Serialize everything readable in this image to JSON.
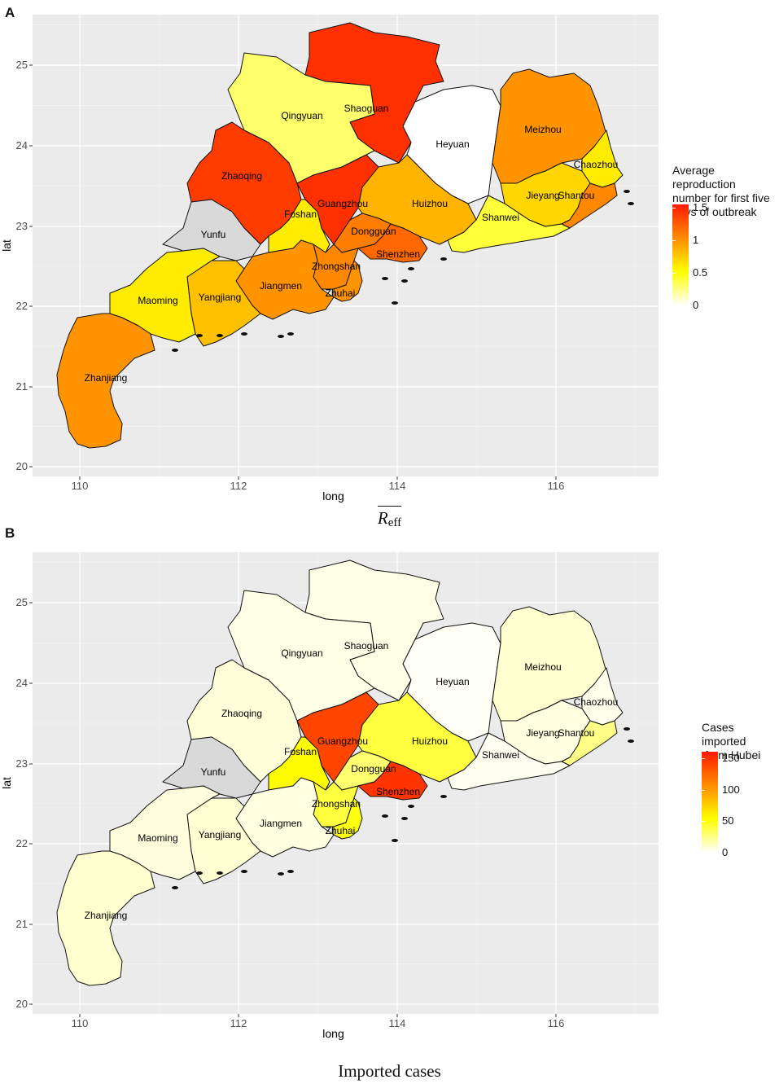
{
  "panels": [
    {
      "letter": "A",
      "caption_main": "R",
      "caption_sub": "eff",
      "legend": {
        "title_lines": [
          "Average reproduction",
          "number for first five",
          "days of outbreak"
        ],
        "ticks": [
          "1.5",
          "1",
          "0.5",
          "0"
        ],
        "tick_values": [
          1.5,
          1,
          0.5,
          0
        ],
        "range": [
          0,
          1.55
        ],
        "colors": [
          "#ffffff",
          "#ffff00",
          "#ff8c00",
          "#ff1a00"
        ]
      }
    },
    {
      "letter": "B",
      "caption": "Imported cases",
      "legend": {
        "title_lines": [
          "Cases imported",
          " from Hubei"
        ],
        "ticks": [
          "150",
          "100",
          "50",
          "0"
        ],
        "tick_values": [
          150,
          100,
          50,
          0
        ],
        "range": [
          0,
          160
        ],
        "colors": [
          "#ffffff",
          "#ffff00",
          "#ff8c00",
          "#ff1a00"
        ]
      }
    }
  ],
  "axes": {
    "xlabel": "long",
    "ylabel": "lat",
    "x_ticks": [
      "110",
      "112",
      "114",
      "116"
    ],
    "y_ticks": [
      "20",
      "21",
      "22",
      "23",
      "24",
      "25"
    ],
    "x_range": [
      109.6,
      117.4
    ],
    "y_range": [
      19.95,
      25.55
    ]
  },
  "chart_data": [
    {
      "type": "choropleth",
      "variable": "Average reproduction number for first five days of outbreak",
      "regions": [
        {
          "name": "Shaoguan",
          "value": 1.45
        },
        {
          "name": "Qingyuan",
          "value": 0.3
        },
        {
          "name": "Heyuan",
          "value": 0.0
        },
        {
          "name": "Meizhou",
          "value": 1.0
        },
        {
          "name": "Chaozhou",
          "value": 0.6
        },
        {
          "name": "Zhaoqing",
          "value": 1.4
        },
        {
          "name": "Guangzhou",
          "value": 1.45
        },
        {
          "name": "Huizhou",
          "value": 0.85
        },
        {
          "name": "Jieyang",
          "value": 0.7
        },
        {
          "name": "Shantou",
          "value": 1.05
        },
        {
          "name": "Foshan",
          "value": 0.6
        },
        {
          "name": "Yunfu",
          "value": null
        },
        {
          "name": "Dongguan",
          "value": 1.1
        },
        {
          "name": "Shanwei",
          "value": 0.4
        },
        {
          "name": "Shenzhen",
          "value": 1.2
        },
        {
          "name": "Zhongshan",
          "value": 1.05
        },
        {
          "name": "Zhuhai",
          "value": 1.0
        },
        {
          "name": "Jiangmen",
          "value": 1.0
        },
        {
          "name": "Yangjiang",
          "value": 0.8
        },
        {
          "name": "Maoming",
          "value": 0.6
        },
        {
          "name": "Zhanjiang",
          "value": 1.0
        }
      ]
    },
    {
      "type": "choropleth",
      "variable": "Cases imported from Hubei",
      "regions": [
        {
          "name": "Shaoguan",
          "value": 5
        },
        {
          "name": "Qingyuan",
          "value": 5
        },
        {
          "name": "Heyuan",
          "value": 2
        },
        {
          "name": "Meizhou",
          "value": 10
        },
        {
          "name": "Chaozhou",
          "value": 4
        },
        {
          "name": "Zhaoqing",
          "value": 8
        },
        {
          "name": "Guangzhou",
          "value": 140
        },
        {
          "name": "Huizhou",
          "value": 40
        },
        {
          "name": "Jieyang",
          "value": 6
        },
        {
          "name": "Shantou",
          "value": 25
        },
        {
          "name": "Foshan",
          "value": 55
        },
        {
          "name": "Yunfu",
          "value": null
        },
        {
          "name": "Dongguan",
          "value": 30
        },
        {
          "name": "Shanwei",
          "value": 3
        },
        {
          "name": "Shenzhen",
          "value": 148
        },
        {
          "name": "Zhongshan",
          "value": 40
        },
        {
          "name": "Zhuhai",
          "value": 50
        },
        {
          "name": "Jiangmen",
          "value": 6
        },
        {
          "name": "Yangjiang",
          "value": 9
        },
        {
          "name": "Maoming",
          "value": 7
        },
        {
          "name": "Zhanjiang",
          "value": 10
        }
      ]
    }
  ]
}
